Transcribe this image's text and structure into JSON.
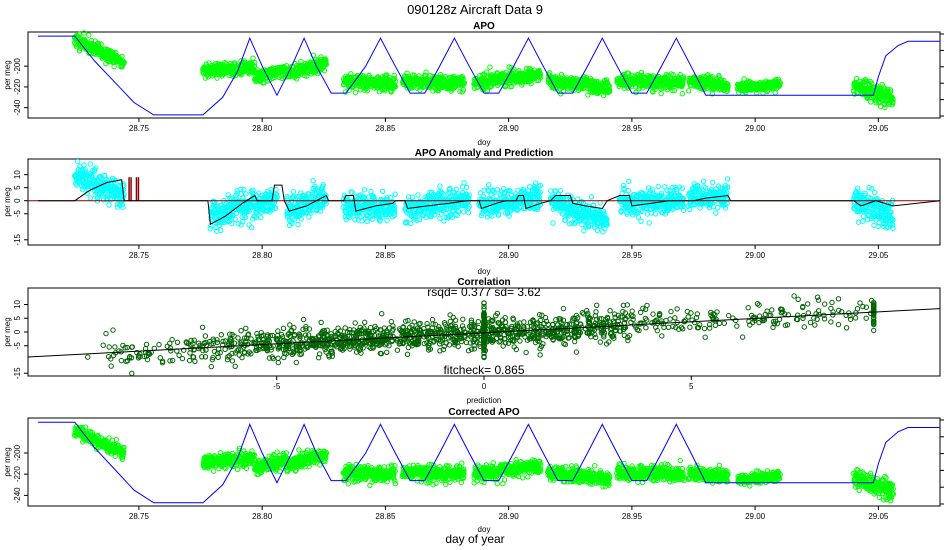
{
  "figure": {
    "main_title": "090128z   Aircraft Data 9",
    "bottom_label": "day of year",
    "colors": {
      "axis": "#000000",
      "flight": "#0000ff",
      "apo": "#00ff00",
      "anomaly": "#00ffff",
      "prediction": "#000000",
      "baseline": "#8b0000",
      "corr_points": "#006400"
    }
  },
  "chart_data": [
    {
      "id": "apo",
      "type": "scatter",
      "title": "APO",
      "xlabel": "doy",
      "ylabel": "per meg",
      "xlim": [
        28.705,
        29.075
      ],
      "ylim": [
        -250,
        -167
      ],
      "xticks": [
        "28.75",
        "28.80",
        "28.85",
        "28.90",
        "28.95",
        "29.00",
        "29.05"
      ],
      "yticks": [
        "-240",
        "-220",
        "-200"
      ],
      "segments": [
        {
          "x0": 28.724,
          "x1": 28.744,
          "y0": -174,
          "y1": -197,
          "sd": 3.5
        },
        {
          "x0": 28.776,
          "x1": 28.797,
          "y0": -204,
          "y1": -202,
          "sd": 3.5
        },
        {
          "x0": 28.797,
          "x1": 28.81,
          "y0": -210,
          "y1": -203,
          "sd": 3.5
        },
        {
          "x0": 28.81,
          "x1": 28.826,
          "y0": -207,
          "y1": -197,
          "sd": 3.5
        },
        {
          "x0": 28.833,
          "x1": 28.854,
          "y0": -215,
          "y1": -217,
          "sd": 3.5
        },
        {
          "x0": 28.857,
          "x1": 28.882,
          "y0": -214,
          "y1": -216,
          "sd": 3.5
        },
        {
          "x0": 28.886,
          "x1": 28.913,
          "y0": -216,
          "y1": -208,
          "sd": 3.5
        },
        {
          "x0": 28.916,
          "x1": 28.941,
          "y0": -214,
          "y1": -221,
          "sd": 3.5
        },
        {
          "x0": 28.944,
          "x1": 28.971,
          "y0": -215,
          "y1": -216,
          "sd": 3.5
        },
        {
          "x0": 28.973,
          "x1": 28.989,
          "y0": -215,
          "y1": -218,
          "sd": 3.5
        },
        {
          "x0": 28.993,
          "x1": 29.01,
          "y0": -221,
          "y1": -218,
          "sd": 2.5
        },
        {
          "x0": 29.04,
          "x1": 29.056,
          "y0": -219,
          "y1": -232,
          "sd": 4.5
        }
      ],
      "flight_path": [
        [
          28.709,
          -171
        ],
        [
          28.724,
          -171
        ],
        [
          28.732,
          -195
        ],
        [
          28.74,
          -215
        ],
        [
          28.748,
          -235
        ],
        [
          28.756,
          -247
        ],
        [
          28.776,
          -247
        ],
        [
          28.784,
          -230
        ],
        [
          28.79,
          -205
        ],
        [
          28.795,
          -173
        ],
        [
          28.8,
          -200
        ],
        [
          28.806,
          -228
        ],
        [
          28.812,
          -200
        ],
        [
          28.817,
          -173
        ],
        [
          28.822,
          -200
        ],
        [
          28.828,
          -226
        ],
        [
          28.834,
          -226
        ],
        [
          28.842,
          -200
        ],
        [
          28.848,
          -173
        ],
        [
          28.854,
          -200
        ],
        [
          28.86,
          -226
        ],
        [
          28.866,
          -226
        ],
        [
          28.872,
          -200
        ],
        [
          28.878,
          -173
        ],
        [
          28.884,
          -200
        ],
        [
          28.89,
          -226
        ],
        [
          28.896,
          -226
        ],
        [
          28.902,
          -200
        ],
        [
          28.908,
          -173
        ],
        [
          28.914,
          -200
        ],
        [
          28.92,
          -226
        ],
        [
          28.926,
          -226
        ],
        [
          28.932,
          -200
        ],
        [
          28.938,
          -173
        ],
        [
          28.944,
          -200
        ],
        [
          28.95,
          -226
        ],
        [
          28.956,
          -226
        ],
        [
          28.962,
          -200
        ],
        [
          28.968,
          -173
        ],
        [
          28.974,
          -200
        ],
        [
          28.98,
          -228
        ],
        [
          28.99,
          -228
        ],
        [
          29.048,
          -228
        ],
        [
          29.05,
          -210
        ],
        [
          29.053,
          -190
        ],
        [
          29.058,
          -180
        ],
        [
          29.062,
          -176
        ],
        [
          29.075,
          -176
        ]
      ]
    },
    {
      "id": "anomaly",
      "type": "scatter",
      "title": "APO Anomaly and Prediction",
      "xlabel": "doy",
      "ylabel": "per meg",
      "xlim": [
        28.705,
        29.075
      ],
      "ylim": [
        -17,
        16
      ],
      "xticks": [
        "28.75",
        "28.80",
        "28.85",
        "28.90",
        "28.95",
        "29.00",
        "29.05"
      ],
      "yticks": [
        "-15",
        "-5",
        "0",
        "5",
        "10"
      ],
      "segments": [
        {
          "x0": 28.724,
          "x1": 28.744,
          "y0": 10,
          "y1": 2,
          "sd": 2.5
        },
        {
          "x0": 28.779,
          "x1": 28.797,
          "y0": -6,
          "y1": -1,
          "sd": 3
        },
        {
          "x0": 28.797,
          "x1": 28.806,
          "y0": -3,
          "y1": 2,
          "sd": 2.5
        },
        {
          "x0": 28.81,
          "x1": 28.826,
          "y0": -4,
          "y1": 2,
          "sd": 3
        },
        {
          "x0": 28.833,
          "x1": 28.854,
          "y0": -2,
          "y1": -3,
          "sd": 2.5
        },
        {
          "x0": 28.858,
          "x1": 28.884,
          "y0": -3,
          "y1": 0,
          "sd": 2.5
        },
        {
          "x0": 28.888,
          "x1": 28.913,
          "y0": -2,
          "y1": 1,
          "sd": 2.5
        },
        {
          "x0": 28.917,
          "x1": 28.94,
          "y0": 0,
          "y1": -8,
          "sd": 2.5
        },
        {
          "x0": 28.945,
          "x1": 28.971,
          "y0": -1,
          "y1": 0,
          "sd": 2.5
        },
        {
          "x0": 28.973,
          "x1": 28.989,
          "y0": 1,
          "y1": 2,
          "sd": 2.5
        },
        {
          "x0": 29.04,
          "x1": 29.056,
          "y0": 0,
          "y1": -6,
          "sd": 3
        }
      ],
      "prediction": [
        [
          28.709,
          0
        ],
        [
          28.724,
          0
        ],
        [
          28.73,
          4
        ],
        [
          28.737,
          7
        ],
        [
          28.743,
          8
        ],
        [
          28.744,
          0
        ],
        [
          28.778,
          0
        ],
        [
          28.779,
          -9
        ],
        [
          28.785,
          -6
        ],
        [
          28.792,
          -1
        ],
        [
          28.797,
          2
        ],
        [
          28.798,
          0
        ],
        [
          28.804,
          0
        ],
        [
          28.805,
          6
        ],
        [
          28.808,
          6
        ],
        [
          28.809,
          0
        ],
        [
          28.811,
          -4
        ],
        [
          28.818,
          -2
        ],
        [
          28.826,
          2
        ],
        [
          28.827,
          0
        ],
        [
          28.833,
          0
        ],
        [
          28.834,
          2
        ],
        [
          28.837,
          2
        ],
        [
          28.838,
          -4
        ],
        [
          28.846,
          -2
        ],
        [
          28.853,
          -1
        ],
        [
          28.854,
          0
        ],
        [
          28.858,
          0
        ],
        [
          28.859,
          -3
        ],
        [
          28.867,
          -2
        ],
        [
          28.876,
          -1
        ],
        [
          28.883,
          0
        ],
        [
          28.888,
          0
        ],
        [
          28.889,
          -3
        ],
        [
          28.895,
          -1
        ],
        [
          28.899,
          0
        ],
        [
          28.903,
          0
        ],
        [
          28.904,
          2
        ],
        [
          28.906,
          2
        ],
        [
          28.907,
          -3
        ],
        [
          28.913,
          -1
        ],
        [
          28.917,
          0
        ],
        [
          28.919,
          2
        ],
        [
          28.925,
          2
        ],
        [
          28.926,
          -1
        ],
        [
          28.931,
          -2
        ],
        [
          28.938,
          -3
        ],
        [
          28.94,
          0
        ],
        [
          28.945,
          2
        ],
        [
          28.949,
          2
        ],
        [
          28.95,
          -2
        ],
        [
          28.958,
          -1
        ],
        [
          28.965,
          0
        ],
        [
          28.971,
          0
        ],
        [
          28.975,
          0
        ],
        [
          28.98,
          1
        ],
        [
          28.989,
          2
        ],
        [
          28.99,
          0
        ],
        [
          29.04,
          0
        ],
        [
          29.043,
          -2
        ],
        [
          29.049,
          0
        ],
        [
          29.056,
          -2
        ],
        [
          29.075,
          0
        ]
      ],
      "spikes_x": [
        28.746,
        28.749
      ]
    },
    {
      "id": "correlation",
      "type": "scatter",
      "title": "Correlation",
      "subtitle": "rsqd= 0.377  sd= 3.62",
      "annotation": "fitcheck= 0.865",
      "xlabel": "prediction",
      "ylabel": "per meg",
      "xlim": [
        -11,
        11
      ],
      "ylim": [
        -16,
        16
      ],
      "xticks": [
        "-5",
        "0",
        "5"
      ],
      "yticks": [
        "-15",
        "-5",
        "0",
        "5",
        "10"
      ],
      "slope": 0.8,
      "intercept": -0.3,
      "sd": 3.6,
      "fit_line": [
        [
          -11,
          -9.1
        ],
        [
          11,
          8.5
        ]
      ]
    },
    {
      "id": "corrected",
      "type": "scatter",
      "title": "Corrected APO",
      "xlabel": "doy",
      "ylabel": "per meg",
      "xlim": [
        28.705,
        29.075
      ],
      "ylim": [
        -250,
        -167
      ],
      "xticks": [
        "28.75",
        "28.80",
        "28.85",
        "28.90",
        "28.95",
        "29.00",
        "29.05"
      ],
      "yticks": [
        "-240",
        "-220",
        "-200"
      ],
      "offset": -4
    }
  ]
}
